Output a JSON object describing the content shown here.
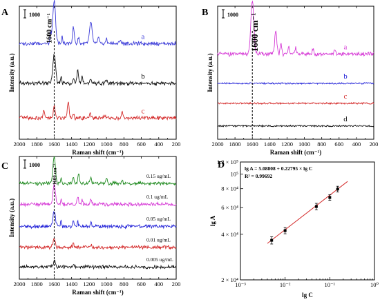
{
  "chart_data": [
    {
      "panel": "A",
      "type": "line",
      "xlabel": "Raman shift (cm⁻¹)",
      "ylabel": "Intensity (a.u.)",
      "xlim": [
        2000,
        200
      ],
      "xticks": [
        2000,
        1800,
        1600,
        1400,
        1200,
        1000,
        800,
        600,
        400,
        200
      ],
      "scale_bar": "1000",
      "annotation": {
        "text": "1600 cm⁻¹",
        "x": 1600
      },
      "series": [
        {
          "name": "a",
          "color": "#3a3ad8",
          "baseline": 0.72,
          "peaks": [
            [
              1600,
              0.32,
              22
            ],
            [
              1640,
              0.08,
              10
            ],
            [
              1510,
              0.06,
              10
            ],
            [
              1380,
              0.12,
              14
            ],
            [
              1320,
              0.05,
              10
            ],
            [
              1180,
              0.16,
              20
            ],
            [
              1090,
              0.05,
              12
            ],
            [
              1000,
              0.04,
              10
            ],
            [
              840,
              0.03,
              10
            ]
          ]
        },
        {
          "name": "b",
          "color": "#111111",
          "baseline": 0.42,
          "peaks": [
            [
              1600,
              0.22,
              22
            ],
            [
              1520,
              0.05,
              10
            ],
            [
              1380,
              0.04,
              12
            ],
            [
              1330,
              0.1,
              12
            ],
            [
              1280,
              0.06,
              12
            ],
            [
              1180,
              0.04,
              12
            ],
            [
              1000,
              0.03,
              10
            ]
          ]
        },
        {
          "name": "c",
          "color": "#d42a2a",
          "baseline": 0.16,
          "peaks": [
            [
              1720,
              0.07,
              10
            ],
            [
              1600,
              0.09,
              14
            ],
            [
              1440,
              0.13,
              14
            ],
            [
              1380,
              0.04,
              10
            ],
            [
              1190,
              0.03,
              12
            ],
            [
              1020,
              0.02,
              10
            ],
            [
              820,
              0.04,
              10
            ]
          ]
        }
      ]
    },
    {
      "panel": "B",
      "type": "line",
      "xlabel": "Raman shift (cm⁻¹)",
      "ylabel": "Intensity (a.u.)",
      "xlim": [
        2000,
        200
      ],
      "xticks": [
        2000,
        1800,
        1600,
        1400,
        1200,
        1000,
        800,
        600,
        400,
        200
      ],
      "scale_bar": "1000",
      "annotation": {
        "text": "1600 cm⁻¹",
        "x": 1600
      },
      "series": [
        {
          "name": "a",
          "color": "#d63ad6",
          "baseline": 0.64,
          "peaks": [
            [
              1600,
              0.4,
              24
            ],
            [
              1330,
              0.18,
              16
            ],
            [
              1270,
              0.09,
              12
            ],
            [
              1180,
              0.06,
              14
            ],
            [
              1100,
              0.05,
              12
            ],
            [
              900,
              0.04,
              12
            ],
            [
              650,
              0.03,
              12
            ]
          ]
        },
        {
          "name": "b",
          "color": "#2323d8",
          "baseline": 0.42,
          "peaks": []
        },
        {
          "name": "c",
          "color": "#d42a2a",
          "baseline": 0.27,
          "peaks": []
        },
        {
          "name": "d",
          "color": "#111111",
          "baseline": 0.1,
          "peaks": []
        }
      ]
    },
    {
      "panel": "C",
      "type": "line",
      "xlabel": "Raman shift (cm⁻¹)",
      "ylabel": "Intensity (a.u.)",
      "xlim": [
        2000,
        200
      ],
      "xticks": [
        2000,
        1800,
        1600,
        1400,
        1200,
        1000,
        800,
        600,
        400,
        200
      ],
      "scale_bar": "1000",
      "annotation": {
        "text": "1600 cm⁻¹",
        "x": 1600
      },
      "series": [
        {
          "name": "0.15 ug/mL",
          "color": "#1f8a1f",
          "baseline": 0.78,
          "peaks": [
            [
              1600,
              0.22,
              20
            ],
            [
              1520,
              0.05,
              10
            ],
            [
              1380,
              0.06,
              12
            ],
            [
              1320,
              0.08,
              12
            ],
            [
              1180,
              0.05,
              14
            ],
            [
              1000,
              0.04,
              12
            ],
            [
              820,
              0.03,
              10
            ]
          ]
        },
        {
          "name": "0.1 ug/mL",
          "color": "#d63ad6",
          "baseline": 0.61,
          "peaks": [
            [
              1600,
              0.16,
              20
            ],
            [
              1520,
              0.04,
              10
            ],
            [
              1330,
              0.07,
              12
            ],
            [
              1280,
              0.04,
              10
            ],
            [
              1180,
              0.04,
              12
            ]
          ]
        },
        {
          "name": "0.05 ug/mL",
          "color": "#2323d8",
          "baseline": 0.43,
          "peaks": [
            [
              1600,
              0.12,
              20
            ],
            [
              1520,
              0.04,
              10
            ],
            [
              1380,
              0.05,
              12
            ],
            [
              1330,
              0.04,
              10
            ],
            [
              1180,
              0.03,
              12
            ]
          ]
        },
        {
          "name": "0.01 ug/mL",
          "color": "#d42a2a",
          "baseline": 0.26,
          "peaks": [
            [
              1600,
              0.07,
              18
            ],
            [
              1380,
              0.03,
              12
            ],
            [
              1180,
              0.02,
              12
            ]
          ]
        },
        {
          "name": "0.005 ug/mL",
          "color": "#111111",
          "baseline": 0.1,
          "peaks": [
            [
              1600,
              0.05,
              18
            ],
            [
              1380,
              0.02,
              12
            ]
          ]
        }
      ]
    },
    {
      "panel": "D",
      "type": "scatter",
      "xlabel": "lg C",
      "ylabel": "lg A",
      "xscale": "log",
      "yscale": "log",
      "xlim": [
        0.001,
        1
      ],
      "ylim": [
        20000,
        120000
      ],
      "xticklabels": [
        {
          "value": 0.001,
          "text": "10⁻³"
        },
        {
          "value": 0.01,
          "text": "10⁻²"
        },
        {
          "value": 0.1,
          "text": "10⁻¹"
        },
        {
          "value": 1,
          "text": "10⁰"
        }
      ],
      "yticklabels": [
        {
          "value": 120000,
          "text": "1.2 × 10⁵"
        },
        {
          "value": 100000,
          "text": "10⁵"
        },
        {
          "value": 80000,
          "text": "8 × 10⁴"
        },
        {
          "value": 60000,
          "text": "6 × 10⁴"
        },
        {
          "value": 40000,
          "text": "4 × 10⁴"
        },
        {
          "value": 20000,
          "text": "2 × 10⁴"
        }
      ],
      "equation": "lg A = 5.08808 + 0.22795 × lg C",
      "r2": "R² = 0.99692",
      "points": [
        {
          "x": 0.005,
          "y": 36500,
          "err": 2000
        },
        {
          "x": 0.01,
          "y": 42300,
          "err": 2000
        },
        {
          "x": 0.05,
          "y": 61000,
          "err": 3000
        },
        {
          "x": 0.1,
          "y": 70000,
          "err": 3000
        },
        {
          "x": 0.15,
          "y": 79500,
          "err": 3500
        }
      ],
      "fit": {
        "intercept": 5.08808,
        "slope": 0.22795,
        "color": "#d42a2a",
        "x_range": [
          0.004,
          0.25
        ]
      }
    }
  ]
}
